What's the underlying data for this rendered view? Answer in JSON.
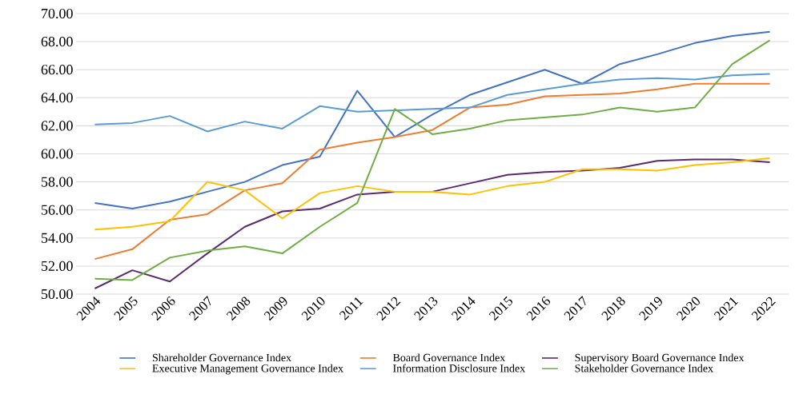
{
  "chart_data": {
    "type": "line",
    "categories": [
      "2004",
      "2005",
      "2006",
      "2007",
      "2008",
      "2009",
      "2010",
      "2011",
      "2012",
      "2013",
      "2014",
      "2015",
      "2016",
      "2017",
      "2018",
      "2019",
      "2020",
      "2021",
      "2022"
    ],
    "series": [
      {
        "name": "Shareholder Governance Index",
        "color": "#4472c4",
        "values": [
          56.5,
          56.1,
          56.6,
          57.3,
          58.0,
          59.2,
          59.8,
          64.5,
          61.2,
          62.8,
          64.2,
          65.1,
          66.0,
          65.0,
          66.4,
          67.1,
          67.9,
          68.4,
          68.7
        ]
      },
      {
        "name": "Board Governance Index",
        "color": "#ed7d31",
        "values": [
          52.5,
          53.2,
          55.3,
          55.7,
          57.4,
          57.9,
          60.3,
          60.8,
          61.2,
          61.7,
          63.3,
          63.5,
          64.1,
          64.2,
          64.3,
          64.6,
          65.0,
          65.0,
          65.0
        ]
      },
      {
        "name": "Supervisory Board Governance Index",
        "color": "#5b2a6e",
        "values": [
          50.4,
          51.7,
          50.9,
          52.9,
          54.8,
          55.9,
          56.1,
          57.1,
          57.3,
          57.3,
          57.9,
          58.5,
          58.7,
          58.8,
          59.0,
          59.5,
          59.6,
          59.6,
          59.4
        ]
      },
      {
        "name": "Executive Management Governance Index",
        "color": "#ffc000",
        "values": [
          54.6,
          54.8,
          55.2,
          58.0,
          57.4,
          55.4,
          57.2,
          57.7,
          57.3,
          57.3,
          57.1,
          57.7,
          58.0,
          58.9,
          58.9,
          58.8,
          59.2,
          59.4,
          59.7
        ]
      },
      {
        "name": "Information Disclosure Index",
        "color": "#5b9bd5",
        "values": [
          62.1,
          62.2,
          62.7,
          61.6,
          62.3,
          61.8,
          63.4,
          63.0,
          63.1,
          63.2,
          63.3,
          64.2,
          64.6,
          65.0,
          65.3,
          65.4,
          65.3,
          65.6,
          65.7
        ]
      },
      {
        "name": "Stakeholder Governance Index",
        "color": "#70ad47",
        "values": [
          51.1,
          51.0,
          52.6,
          53.1,
          53.4,
          52.9,
          54.8,
          56.5,
          63.2,
          61.4,
          61.8,
          62.4,
          62.6,
          62.8,
          63.3,
          63.0,
          63.3,
          66.4,
          68.1
        ]
      }
    ],
    "ylim": [
      50,
      70
    ],
    "yticks": [
      {
        "value": 50,
        "label": "50.00"
      },
      {
        "value": 52,
        "label": "52.00"
      },
      {
        "value": 54,
        "label": "54.00"
      },
      {
        "value": 56,
        "label": "56.00"
      },
      {
        "value": 58,
        "label": "58.00"
      },
      {
        "value": 60,
        "label": "60.00"
      },
      {
        "value": 62,
        "label": "62.00"
      },
      {
        "value": 64,
        "label": "64.00"
      },
      {
        "value": 66,
        "label": "66.00"
      },
      {
        "value": 68,
        "label": "68.00"
      },
      {
        "value": 70,
        "label": "70.00"
      }
    ],
    "grid": "y",
    "legend": "bottom",
    "line_style": "solid"
  }
}
